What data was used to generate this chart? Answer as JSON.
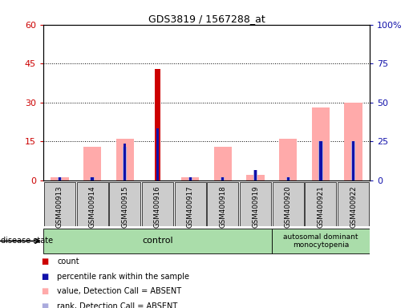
{
  "title": "GDS3819 / 1567288_at",
  "samples": [
    "GSM400913",
    "GSM400914",
    "GSM400915",
    "GSM400916",
    "GSM400917",
    "GSM400918",
    "GSM400919",
    "GSM400920",
    "GSM400921",
    "GSM400922"
  ],
  "count_values": [
    0,
    0,
    0,
    43,
    0,
    0,
    0,
    0,
    0,
    0
  ],
  "percentile_rank_values": [
    1,
    1,
    14,
    20,
    1,
    1,
    4,
    1,
    15,
    15
  ],
  "value_absent_values": [
    1,
    13,
    16,
    0,
    1,
    13,
    2,
    16,
    28,
    30
  ],
  "rank_absent_values": [
    1,
    1,
    13,
    0,
    1,
    1,
    4,
    1,
    15,
    15
  ],
  "n_control": 7,
  "disease_label": "autosomal dominant\nmonocytopenia",
  "control_label": "control",
  "ylim_left": [
    0,
    60
  ],
  "ylim_right": [
    0,
    100
  ],
  "yticks_left": [
    0,
    15,
    30,
    45,
    60
  ],
  "yticks_right": [
    0,
    25,
    50,
    75,
    100
  ],
  "ytick_labels_left": [
    "0",
    "15",
    "30",
    "45",
    "60"
  ],
  "ytick_labels_right": [
    "0",
    "25",
    "50",
    "75",
    "100%"
  ],
  "color_count": "#cc0000",
  "color_percentile": "#1111aa",
  "color_value_absent": "#ffaaaa",
  "color_rank_absent": "#aaaadd",
  "color_grid": "black",
  "bg_xticklabels": "#cccccc",
  "control_bg": "#aaddaa",
  "disease_bg": "#aaddaa",
  "legend_labels": [
    "count",
    "percentile rank within the sample",
    "value, Detection Call = ABSENT",
    "rank, Detection Call = ABSENT"
  ],
  "legend_colors": [
    "#cc0000",
    "#1111aa",
    "#ffaaaa",
    "#aaaadd"
  ]
}
